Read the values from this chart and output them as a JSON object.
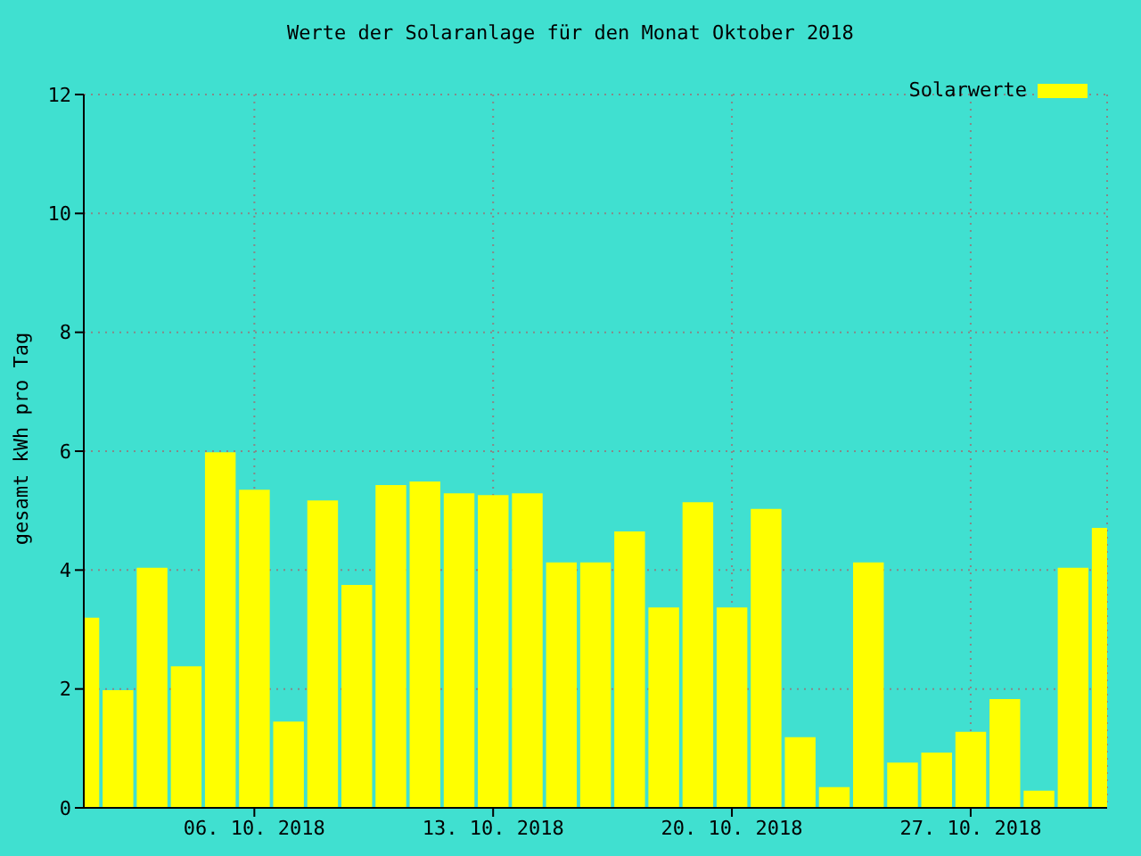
{
  "chart_data": {
    "type": "bar",
    "title": "Werte der Solaranlage für den Monat Oktober 2018",
    "ylabel": "gesamt kWh pro Tag",
    "x": [
      "2018-10-01",
      "2018-10-02",
      "2018-10-03",
      "2018-10-04",
      "2018-10-05",
      "2018-10-06",
      "2018-10-07",
      "2018-10-08",
      "2018-10-09",
      "2018-10-10",
      "2018-10-11",
      "2018-10-12",
      "2018-10-13",
      "2018-10-14",
      "2018-10-15",
      "2018-10-16",
      "2018-10-17",
      "2018-10-18",
      "2018-10-19",
      "2018-10-20",
      "2018-10-21",
      "2018-10-22",
      "2018-10-23",
      "2018-10-24",
      "2018-10-25",
      "2018-10-26",
      "2018-10-27",
      "2018-10-28",
      "2018-10-29",
      "2018-10-30",
      "2018-10-31"
    ],
    "series": [
      {
        "name": "Solarwerte",
        "color": "#ffff00",
        "values": [
          3.2,
          1.98,
          4.04,
          2.38,
          5.98,
          5.35,
          1.45,
          5.17,
          3.75,
          5.43,
          5.49,
          5.29,
          5.26,
          5.29,
          4.13,
          4.13,
          4.65,
          3.37,
          5.14,
          3.37,
          5.03,
          1.19,
          0.35,
          4.13,
          0.76,
          0.93,
          1.28,
          1.83,
          0.29,
          4.04,
          4.71
        ]
      }
    ],
    "xlim": [
      "2018-10-01",
      "2018-10-31"
    ],
    "xticks": [
      {
        "value": "2018-10-06",
        "label": "06. 10. 2018"
      },
      {
        "value": "2018-10-13",
        "label": "13. 10. 2018"
      },
      {
        "value": "2018-10-20",
        "label": "20. 10. 2018"
      },
      {
        "value": "2018-10-27",
        "label": "27. 10. 2018"
      }
    ],
    "ylim": [
      0,
      12
    ],
    "yticks": [
      0,
      2,
      4,
      6,
      8,
      10,
      12
    ],
    "grid": true,
    "legend": "top right"
  }
}
